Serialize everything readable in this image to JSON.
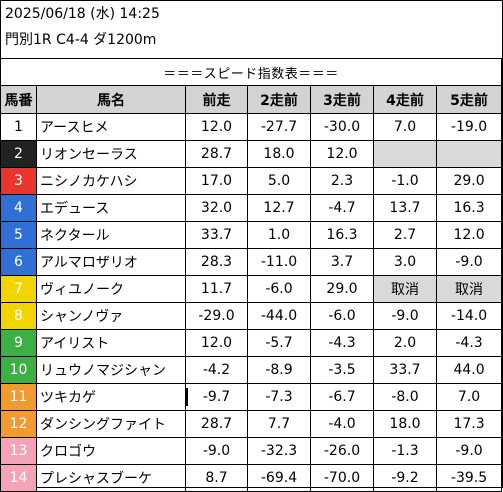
{
  "header": {
    "datetime": "2025/06/18 (水) 14:25",
    "race": "門別1R C4-4 ダ1200m"
  },
  "table": {
    "title": "＝＝＝スピード指数表＝＝＝",
    "columns": [
      "馬番",
      "馬名",
      "前走",
      "2走前",
      "3走前",
      "4走前",
      "5走前"
    ],
    "rows": [
      {
        "num": "1",
        "name": "アースヒメ",
        "v": [
          "12.0",
          "-27.7",
          "-30.0",
          "7.0",
          "-19.0"
        ],
        "color": "#ffffff",
        "fg": "#000000"
      },
      {
        "num": "2",
        "name": "リオンセーラス",
        "v": [
          "28.7",
          "18.0",
          "12.0",
          "",
          ""
        ],
        "color": "#222222",
        "fg": "#ffffff"
      },
      {
        "num": "3",
        "name": "ニシノカケハシ",
        "v": [
          "17.0",
          "5.0",
          "2.3",
          "-1.0",
          "29.0"
        ],
        "color": "#e8362e",
        "fg": "#ffffff"
      },
      {
        "num": "4",
        "name": "エデュース",
        "v": [
          "32.0",
          "12.7",
          "-4.7",
          "13.7",
          "16.3"
        ],
        "color": "#2f6fd6",
        "fg": "#ffffff"
      },
      {
        "num": "5",
        "name": "ネクタール",
        "v": [
          "33.7",
          "1.0",
          "16.3",
          "2.7",
          "12.0"
        ],
        "color": "#2f6fd6",
        "fg": "#ffffff"
      },
      {
        "num": "6",
        "name": "アルマロザリオ",
        "v": [
          "28.3",
          "-11.0",
          "3.7",
          "3.0",
          "-9.0"
        ],
        "color": "#2f6fd6",
        "fg": "#ffffff"
      },
      {
        "num": "7",
        "name": "ヴィユノーク",
        "v": [
          "11.7",
          "-6.0",
          "29.0",
          "取消",
          "取消"
        ],
        "color": "#f2d400",
        "fg": "#ffffff"
      },
      {
        "num": "8",
        "name": "シャンノヴァ",
        "v": [
          "-29.0",
          "-44.0",
          "-6.0",
          "-9.0",
          "-14.0"
        ],
        "color": "#f2d400",
        "fg": "#ffffff"
      },
      {
        "num": "9",
        "name": "アイリスト",
        "v": [
          "12.0",
          "-5.7",
          "-4.3",
          "2.0",
          "-4.3"
        ],
        "color": "#3cb043",
        "fg": "#ffffff"
      },
      {
        "num": "10",
        "name": "リュウノマジシャン",
        "v": [
          "-4.2",
          "-8.9",
          "-3.5",
          "33.7",
          "44.0"
        ],
        "color": "#3cb043",
        "fg": "#ffffff"
      },
      {
        "num": "11",
        "name": "ツキカゲ",
        "v": [
          "-9.7",
          "-7.3",
          "-6.7",
          "-8.0",
          "7.0"
        ],
        "color": "#f39a2e",
        "fg": "#ffffff"
      },
      {
        "num": "12",
        "name": "ダンシングファイト",
        "v": [
          "28.7",
          "7.7",
          "-4.0",
          "18.0",
          "17.3"
        ],
        "color": "#f39a2e",
        "fg": "#ffffff"
      },
      {
        "num": "13",
        "name": "クロゴウ",
        "v": [
          "-9.0",
          "-32.3",
          "-26.0",
          "-1.3",
          "-9.0"
        ],
        "color": "#f4a4b6",
        "fg": "#ffffff"
      },
      {
        "num": "14",
        "name": "プレシャスブーケ",
        "v": [
          "8.7",
          "-69.4",
          "-70.0",
          "-9.2",
          "-39.5"
        ],
        "color": "#f4a4b6",
        "fg": "#ffffff"
      }
    ]
  }
}
